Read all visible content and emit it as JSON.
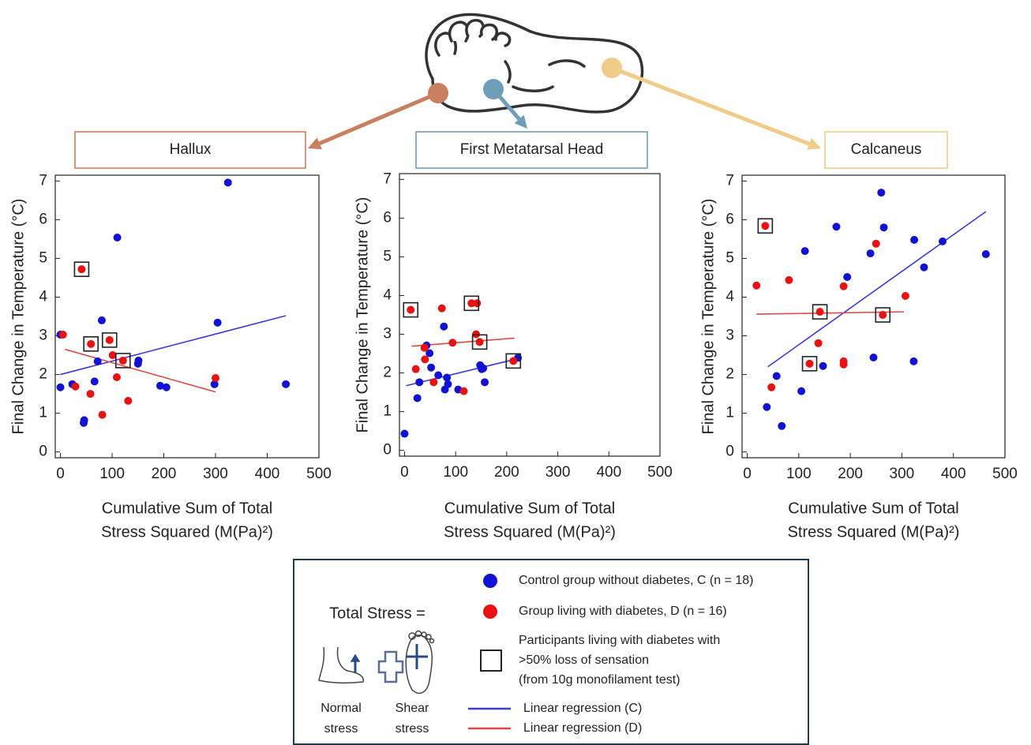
{
  "chart_data": [
    {
      "type": "scatter",
      "title": "Hallux",
      "color": "#c8805f",
      "ylabel": "Final Change in Temperature (°C)",
      "xlabel": [
        "Cumulative Sum of Total",
        "Stress Squared (M(Pa)²)"
      ],
      "xlim": [
        -10,
        500
      ],
      "ylim": [
        -0.15,
        7.15
      ],
      "xticks": [
        0,
        100,
        200,
        300,
        400,
        500
      ],
      "yticks": [
        0,
        1,
        2,
        3,
        4,
        5,
        6,
        7
      ],
      "series": [
        {
          "marker": "dot",
          "color": "#1212d2",
          "x": [
            0,
            0,
            23,
            45,
            46,
            66,
            72,
            80,
            110,
            150,
            151,
            193,
            205,
            298,
            304,
            324,
            436
          ],
          "values": [
            3.03,
            1.67,
            1.75,
            0.75,
            0.82,
            1.82,
            2.34,
            3.4,
            5.54,
            2.28,
            2.36,
            1.71,
            1.67,
            1.75,
            3.34,
            6.96,
            1.75
          ]
        },
        {
          "marker": "dot",
          "color": "#e81212",
          "x": [
            5,
            29,
            41,
            59,
            58,
            81,
            95,
            101,
            109,
            121,
            131,
            300
          ],
          "values": [
            3.03,
            1.69,
            4.72,
            2.79,
            1.5,
            0.96,
            2.89,
            2.5,
            1.93,
            2.36,
            1.32,
            1.91
          ]
        },
        {
          "marker": "box",
          "color": "#222222",
          "x": [
            41,
            59,
            95,
            121
          ],
          "values": [
            4.72,
            2.79,
            2.89,
            2.36
          ]
        }
      ],
      "fits": [
        {
          "color": "#3b3bd8",
          "x": [
            0,
            436
          ],
          "values": [
            2.0,
            3.52
          ]
        },
        {
          "color": "#e04848",
          "x": [
            9,
            300
          ],
          "values": [
            2.65,
            1.55
          ]
        }
      ]
    },
    {
      "type": "scatter",
      "title": "First Metatarsal Head",
      "color": "#6f9fb8",
      "ylabel": "Final Change in Temperature (°C)",
      "xlabel": [
        "Cumulative Sum of Total",
        "Stress Squared (M(Pa)²)"
      ],
      "xlim": [
        -10,
        500
      ],
      "ylim": [
        -0.15,
        7.15
      ],
      "xticks": [
        0,
        100,
        200,
        300,
        400,
        500
      ],
      "yticks": [
        0,
        1,
        2,
        3,
        4,
        5,
        6,
        7
      ],
      "series": [
        {
          "marker": "dot",
          "color": "#1212d2",
          "x": [
            0,
            25,
            29,
            43,
            49,
            52,
            66,
            77,
            79,
            83,
            85,
            105,
            148,
            151,
            154,
            157,
            222
          ],
          "values": [
            0.43,
            1.35,
            1.76,
            2.71,
            2.51,
            2.14,
            1.94,
            3.2,
            1.57,
            1.88,
            1.71,
            1.57,
            2.2,
            2.1,
            2.12,
            1.76,
            2.39
          ]
        },
        {
          "marker": "dot",
          "color": "#e81212",
          "x": [
            12,
            22,
            39,
            40,
            57,
            73,
            94,
            116,
            131,
            142,
            140,
            147,
            213
          ],
          "values": [
            3.63,
            2.1,
            2.65,
            2.35,
            1.76,
            3.67,
            2.78,
            1.53,
            3.8,
            3.8,
            3.0,
            2.8,
            2.31
          ]
        },
        {
          "marker": "box",
          "color": "#222222",
          "x": [
            12,
            131,
            147,
            213
          ],
          "values": [
            3.63,
            3.8,
            2.8,
            2.31
          ]
        }
      ],
      "fits": [
        {
          "color": "#3b3bd8",
          "x": [
            3,
            228
          ],
          "values": [
            1.67,
            2.39
          ]
        },
        {
          "color": "#e04848",
          "x": [
            14,
            215
          ],
          "values": [
            2.69,
            2.9
          ]
        }
      ]
    },
    {
      "type": "scatter",
      "title": "Calcaneus",
      "color": "#f0cc88",
      "ylabel": "Final Change in Temperature (°C)",
      "xlabel": [
        "Cumulative Sum of Total",
        "Stress Squared (M(Pa)²)"
      ],
      "xlim": [
        -10,
        500
      ],
      "ylim": [
        -0.15,
        7.15
      ],
      "xticks": [
        0,
        100,
        200,
        300,
        400,
        500
      ],
      "yticks": [
        0,
        1,
        2,
        3,
        4,
        5,
        6,
        7
      ],
      "series": [
        {
          "marker": "dot",
          "color": "#1212d2",
          "x": [
            38,
            57,
            67,
            105,
            112,
            147,
            173,
            194,
            239,
            245,
            260,
            265,
            324,
            323,
            343,
            379,
            463
          ],
          "values": [
            1.16,
            1.96,
            0.67,
            1.57,
            5.19,
            2.22,
            5.82,
            4.52,
            5.13,
            2.44,
            6.7,
            5.8,
            5.48,
            2.34,
            4.77,
            5.44,
            5.11
          ]
        },
        {
          "marker": "dot",
          "color": "#e81212",
          "x": [
            18,
            35,
            47,
            81,
            121,
            138,
            141,
            187,
            187,
            187,
            250,
            263,
            307
          ],
          "values": [
            4.3,
            5.84,
            1.67,
            4.44,
            2.28,
            2.81,
            3.62,
            4.28,
            2.34,
            2.26,
            5.38,
            3.54,
            4.03
          ]
        },
        {
          "marker": "box",
          "color": "#222222",
          "x": [
            35,
            121,
            141,
            263
          ],
          "values": [
            5.84,
            2.28,
            3.62,
            3.54
          ]
        }
      ],
      "fits": [
        {
          "color": "#3b3bd8",
          "x": [
            40,
            463
          ],
          "values": [
            2.2,
            6.21
          ]
        },
        {
          "color": "#e04848",
          "x": [
            18,
            304
          ],
          "values": [
            3.56,
            3.62
          ]
        }
      ]
    }
  ],
  "legend": {
    "title": "Total Stress =",
    "normal": [
      "Normal",
      "stress"
    ],
    "shear": [
      "Shear",
      "stress"
    ],
    "items": [
      {
        "marker": "dot",
        "color": "#1212d2",
        "label": [
          "Control group without diabetes, C (n = 18)"
        ]
      },
      {
        "marker": "dot",
        "color": "#e81212",
        "label": [
          "Group living with diabetes, D (n = 16)"
        ]
      },
      {
        "marker": "box",
        "color": "#222222",
        "label": [
          "Participants living with diabetes with",
          ">50% loss of sensation",
          "(from 10g monofilament test)"
        ]
      },
      {
        "marker": "line",
        "color": "#3b3bd8",
        "label": [
          "Linear regression (C)"
        ]
      },
      {
        "marker": "line",
        "color": "#e04848",
        "label": [
          "Linear regression (D)"
        ]
      }
    ]
  }
}
